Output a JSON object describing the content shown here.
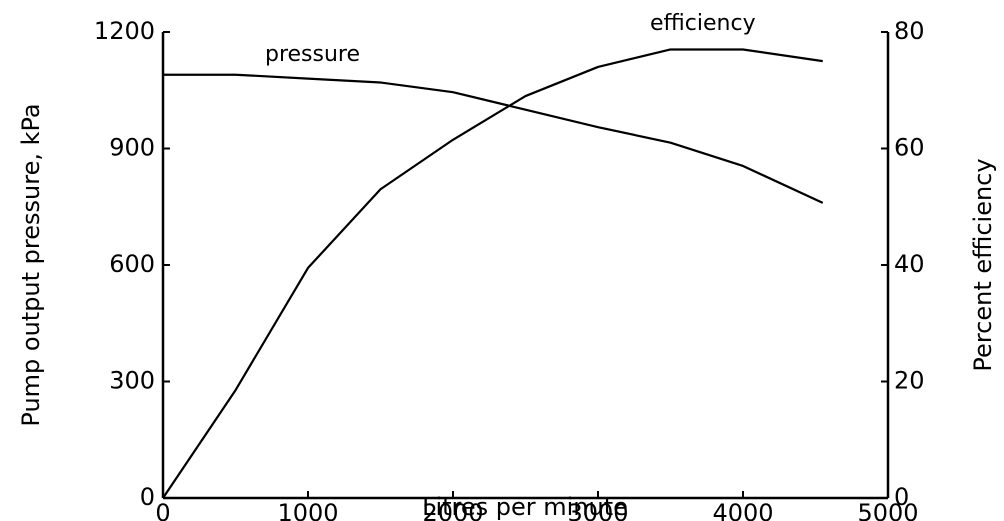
{
  "chart_data": {
    "type": "line",
    "xlabel": "Litres per minute",
    "ylabel": "Pump output pressure,  kPa",
    "y2label": "Percent efficiency",
    "x": [
      0,
      500,
      1000,
      1500,
      2000,
      2500,
      3000,
      3500,
      4000,
      4550
    ],
    "series": [
      {
        "name": "pressure",
        "color": "#000000",
        "values": [
          1090,
          1090,
          1080,
          1070,
          1045,
          1000,
          955,
          915,
          855,
          760
        ]
      },
      {
        "name": "efficiency",
        "color": "#000000",
        "axis": "y2",
        "values": [
          0,
          18.5,
          39.5,
          53,
          61.5,
          69,
          74,
          77,
          77,
          75
        ]
      }
    ],
    "xlim": [
      0,
      5000
    ],
    "xticks": [
      0,
      1000,
      2000,
      3000,
      4000,
      5000
    ],
    "ylim": [
      0,
      1200
    ],
    "yticks": [
      0,
      300,
      600,
      900,
      1200
    ],
    "y2lim": [
      0,
      80
    ],
    "y2ticks": [
      0,
      20,
      40,
      60,
      80
    ],
    "grid": false
  }
}
